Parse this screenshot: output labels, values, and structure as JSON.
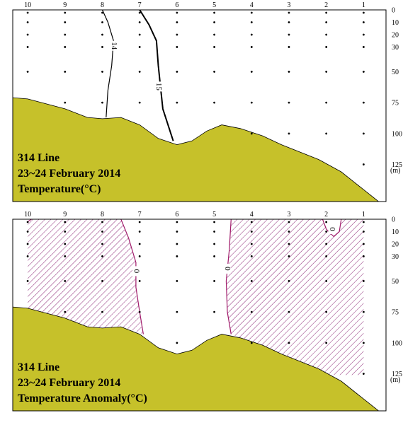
{
  "colors": {
    "seafloor": "#c6c12a",
    "anomaly_contour": "#a01a6a",
    "hatch": "#8e2a78",
    "frame": "#000000"
  },
  "chart_data": [
    {
      "type": "contour-section",
      "title_lines": [
        "314 Line",
        "23~24 February 2014",
        "Temperature(°C)"
      ],
      "station_labels": [
        "10",
        "9",
        "8",
        "7",
        "6",
        "5",
        "4",
        "3",
        "2",
        "1"
      ],
      "depth_ticks": [
        0,
        10,
        20,
        30,
        50,
        75,
        100,
        125
      ],
      "depth_unit": "(m)",
      "xlim": [
        10.4,
        0.4
      ],
      "ylim": [
        0,
        155
      ],
      "seafloor_depth": [
        {
          "x": 10.4,
          "y": 71
        },
        {
          "x": 10,
          "y": 72
        },
        {
          "x": 9,
          "y": 80
        },
        {
          "x": 8.4,
          "y": 87
        },
        {
          "x": 8,
          "y": 88
        },
        {
          "x": 7.5,
          "y": 87
        },
        {
          "x": 7,
          "y": 93
        },
        {
          "x": 6.5,
          "y": 104
        },
        {
          "x": 6,
          "y": 109
        },
        {
          "x": 5.6,
          "y": 106
        },
        {
          "x": 5.2,
          "y": 98
        },
        {
          "x": 4.8,
          "y": 93
        },
        {
          "x": 4.3,
          "y": 96
        },
        {
          "x": 3.7,
          "y": 102
        },
        {
          "x": 3.2,
          "y": 109
        },
        {
          "x": 2.7,
          "y": 115
        },
        {
          "x": 2.2,
          "y": 121
        },
        {
          "x": 1.6,
          "y": 131
        },
        {
          "x": 1.1,
          "y": 143
        },
        {
          "x": 0.6,
          "y": 155
        },
        {
          "x": 0.4,
          "y": 155
        }
      ],
      "contours": [
        {
          "value": "14",
          "points": [
            {
              "x": 8,
              "y": 0
            },
            {
              "x": 7.85,
              "y": 10
            },
            {
              "x": 7.7,
              "y": 25
            },
            {
              "x": 7.75,
              "y": 45
            },
            {
              "x": 7.85,
              "y": 65
            },
            {
              "x": 7.9,
              "y": 87
            }
          ],
          "label_at": {
            "x": 7.7,
            "y": 29
          }
        },
        {
          "value": "15",
          "points": [
            {
              "x": 7,
              "y": 0
            },
            {
              "x": 6.75,
              "y": 12
            },
            {
              "x": 6.55,
              "y": 25
            },
            {
              "x": 6.5,
              "y": 45
            },
            {
              "x": 6.45,
              "y": 60
            },
            {
              "x": 6.38,
              "y": 80
            },
            {
              "x": 6.1,
              "y": 106
            }
          ],
          "label_at": {
            "x": 6.5,
            "y": 62
          }
        }
      ],
      "stations": [
        {
          "x": 10,
          "depths": [
            0,
            10,
            20,
            30,
            50
          ]
        },
        {
          "x": 9,
          "depths": [
            0,
            10,
            20,
            30,
            50,
            75
          ]
        },
        {
          "x": 8,
          "depths": [
            0,
            10,
            20,
            30,
            50,
            75
          ]
        },
        {
          "x": 7,
          "depths": [
            0,
            10,
            20,
            30,
            50,
            75
          ]
        },
        {
          "x": 6,
          "depths": [
            0,
            10,
            20,
            30,
            50,
            75
          ]
        },
        {
          "x": 5,
          "depths": [
            0,
            10,
            20,
            30,
            50,
            75
          ]
        },
        {
          "x": 4,
          "depths": [
            0,
            10,
            20,
            30,
            50,
            75,
            100
          ]
        },
        {
          "x": 3,
          "depths": [
            0,
            10,
            20,
            30,
            50,
            75,
            100
          ]
        },
        {
          "x": 2,
          "depths": [
            0,
            10,
            20,
            30,
            50,
            75,
            100
          ]
        },
        {
          "x": 1,
          "depths": [
            0,
            10,
            20,
            30,
            50,
            75,
            100,
            125
          ]
        }
      ]
    },
    {
      "type": "contour-section",
      "title_lines": [
        "314 Line",
        "23~24 February 2014",
        "Temperature Anomaly(°C)"
      ],
      "station_labels": [
        "10",
        "9",
        "8",
        "7",
        "6",
        "5",
        "4",
        "3",
        "2",
        "1"
      ],
      "depth_ticks": [
        0,
        10,
        20,
        30,
        50,
        75,
        100,
        125
      ],
      "depth_unit": "(m)",
      "xlim": [
        10.4,
        0.4
      ],
      "ylim": [
        0,
        155
      ],
      "seafloor_depth": [
        {
          "x": 10.4,
          "y": 71
        },
        {
          "x": 10,
          "y": 72
        },
        {
          "x": 9,
          "y": 80
        },
        {
          "x": 8.4,
          "y": 87
        },
        {
          "x": 8,
          "y": 88
        },
        {
          "x": 7.5,
          "y": 87
        },
        {
          "x": 7,
          "y": 93
        },
        {
          "x": 6.5,
          "y": 104
        },
        {
          "x": 6,
          "y": 109
        },
        {
          "x": 5.6,
          "y": 106
        },
        {
          "x": 5.2,
          "y": 98
        },
        {
          "x": 4.8,
          "y": 93
        },
        {
          "x": 4.3,
          "y": 96
        },
        {
          "x": 3.7,
          "y": 102
        },
        {
          "x": 3.2,
          "y": 109
        },
        {
          "x": 2.7,
          "y": 115
        },
        {
          "x": 2.2,
          "y": 121
        },
        {
          "x": 1.6,
          "y": 131
        },
        {
          "x": 1.1,
          "y": 143
        },
        {
          "x": 0.6,
          "y": 155
        },
        {
          "x": 0.4,
          "y": 155
        }
      ],
      "hatched_regions": [
        [
          {
            "x": 10,
            "y": 0
          },
          {
            "x": 7.5,
            "y": 0
          },
          {
            "x": 7.3,
            "y": 15
          },
          {
            "x": 7.1,
            "y": 35
          },
          {
            "x": 7.1,
            "y": 55
          },
          {
            "x": 7.0,
            "y": 75
          },
          {
            "x": 6.9,
            "y": 93
          },
          {
            "x": 7.5,
            "y": 87
          },
          {
            "x": 8,
            "y": 88
          },
          {
            "x": 8.4,
            "y": 87
          },
          {
            "x": 9,
            "y": 80
          },
          {
            "x": 10,
            "y": 72
          }
        ],
        [
          {
            "x": 4.55,
            "y": 0
          },
          {
            "x": 2.1,
            "y": 0
          },
          {
            "x": 2.0,
            "y": 8
          },
          {
            "x": 1.8,
            "y": 14
          },
          {
            "x": 1.65,
            "y": 10
          },
          {
            "x": 1.6,
            "y": 0
          },
          {
            "x": 1,
            "y": 0
          },
          {
            "x": 1,
            "y": 126
          },
          {
            "x": 1.85,
            "y": 126
          },
          {
            "x": 2.2,
            "y": 121
          },
          {
            "x": 2.7,
            "y": 115
          },
          {
            "x": 3.2,
            "y": 109
          },
          {
            "x": 3.7,
            "y": 102
          },
          {
            "x": 4.3,
            "y": 96
          },
          {
            "x": 4.55,
            "y": 93
          },
          {
            "x": 4.65,
            "y": 75
          },
          {
            "x": 4.68,
            "y": 50
          },
          {
            "x": 4.6,
            "y": 25
          }
        ]
      ],
      "contours": [
        {
          "value": "0",
          "points": [
            {
              "x": 7.5,
              "y": 0
            },
            {
              "x": 7.3,
              "y": 15
            },
            {
              "x": 7.1,
              "y": 35
            },
            {
              "x": 7.1,
              "y": 55
            },
            {
              "x": 7.0,
              "y": 75
            },
            {
              "x": 6.9,
              "y": 93
            }
          ],
          "label_at": {
            "x": 7.1,
            "y": 42
          }
        },
        {
          "value": "0",
          "points": [
            {
              "x": 4.55,
              "y": 0
            },
            {
              "x": 4.6,
              "y": 25
            },
            {
              "x": 4.68,
              "y": 50
            },
            {
              "x": 4.65,
              "y": 75
            },
            {
              "x": 4.55,
              "y": 93
            }
          ],
          "label_at": {
            "x": 4.66,
            "y": 40
          }
        },
        {
          "value": "0",
          "points": [
            {
              "x": 2.1,
              "y": 0
            },
            {
              "x": 2.0,
              "y": 8
            },
            {
              "x": 1.8,
              "y": 14
            },
            {
              "x": 1.65,
              "y": 10
            },
            {
              "x": 1.6,
              "y": 0
            }
          ],
          "label_at": {
            "x": 1.85,
            "y": 8
          }
        },
        {
          "value": "",
          "points": [
            {
              "x": 10,
              "y": 2
            },
            {
              "x": 9.9,
              "y": 0
            }
          ],
          "label_at": null
        }
      ],
      "stations": [
        {
          "x": 10,
          "depths": [
            0,
            10,
            20,
            30,
            50
          ]
        },
        {
          "x": 9,
          "depths": [
            0,
            10,
            20,
            30,
            50,
            75
          ]
        },
        {
          "x": 8,
          "depths": [
            0,
            10,
            20,
            30,
            50,
            75
          ]
        },
        {
          "x": 7,
          "depths": [
            0,
            10,
            20,
            30,
            50,
            75
          ]
        },
        {
          "x": 6,
          "depths": [
            0,
            10,
            20,
            30,
            50,
            75,
            100
          ]
        },
        {
          "x": 5,
          "depths": [
            0,
            10,
            20,
            30,
            50,
            75
          ]
        },
        {
          "x": 4,
          "depths": [
            0,
            10,
            20,
            30,
            50,
            75,
            100
          ]
        },
        {
          "x": 3,
          "depths": [
            0,
            10,
            20,
            30,
            50,
            75,
            100
          ]
        },
        {
          "x": 2,
          "depths": [
            0,
            10,
            20,
            30,
            50,
            75,
            100
          ]
        },
        {
          "x": 1,
          "depths": [
            0,
            10,
            20,
            30,
            50,
            75,
            100,
            125
          ]
        }
      ]
    }
  ]
}
